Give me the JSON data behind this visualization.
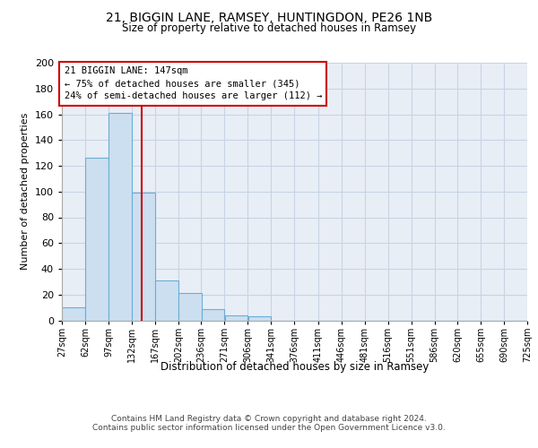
{
  "title1": "21, BIGGIN LANE, RAMSEY, HUNTINGDON, PE26 1NB",
  "title2": "Size of property relative to detached houses in Ramsey",
  "xlabel": "Distribution of detached houses by size in Ramsey",
  "ylabel": "Number of detached properties",
  "bins": [
    27,
    62,
    97,
    132,
    167,
    202,
    236,
    271,
    306,
    341,
    376,
    411,
    446,
    481,
    516,
    551,
    586,
    620,
    655,
    690,
    725
  ],
  "counts": [
    10,
    126,
    161,
    99,
    31,
    21,
    9,
    4,
    3,
    0,
    0,
    0,
    0,
    0,
    0,
    0,
    0,
    0,
    0,
    0
  ],
  "bar_color": "#ccdff0",
  "bar_edge_color": "#6aaed6",
  "grid_color": "#c8d4e4",
  "bg_color": "#e8eef6",
  "vline_x": 147,
  "vline_color": "#cc0000",
  "annotation_text": "21 BIGGIN LANE: 147sqm\n← 75% of detached houses are smaller (345)\n24% of semi-detached houses are larger (112) →",
  "annotation_box_color": "#cc0000",
  "ylim": [
    0,
    200
  ],
  "yticks": [
    0,
    20,
    40,
    60,
    80,
    100,
    120,
    140,
    160,
    180,
    200
  ],
  "footer": "Contains HM Land Registry data © Crown copyright and database right 2024.\nContains public sector information licensed under the Open Government Licence v3.0."
}
